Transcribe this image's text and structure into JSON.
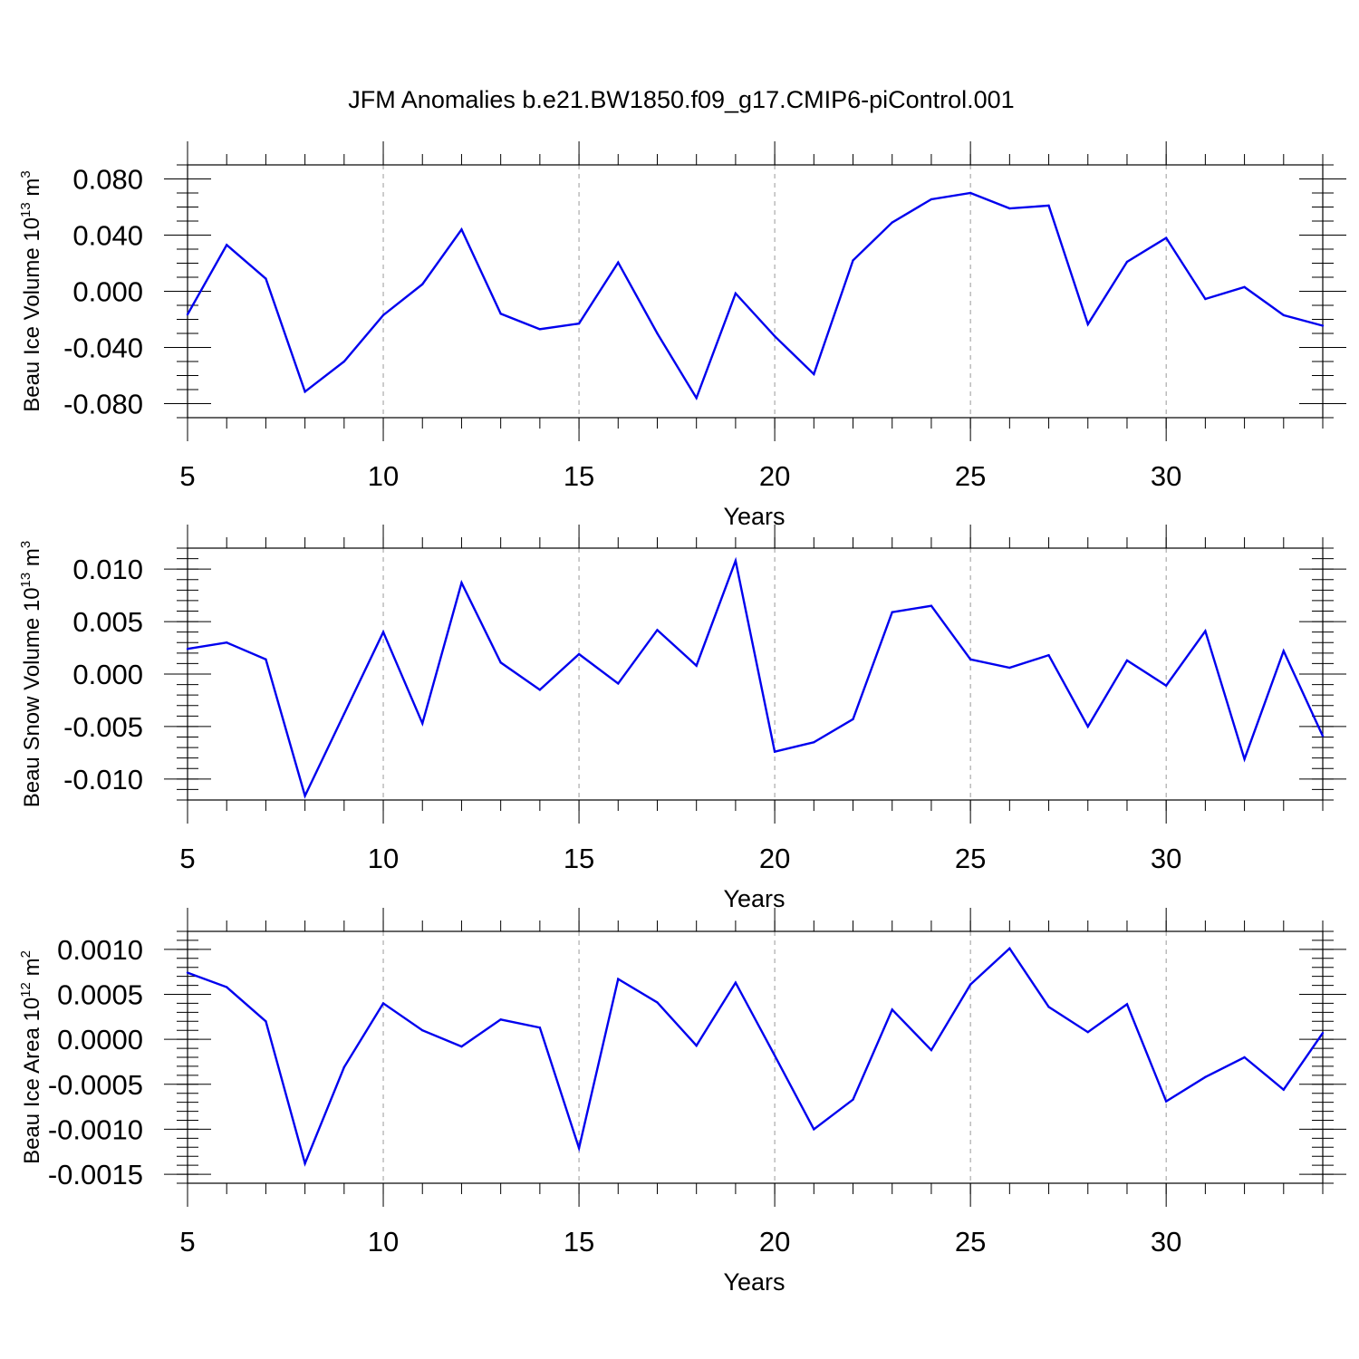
{
  "chart_title": "JFM Anomalies b.e21.BW1850.f09_g17.CMIP6-piControl.001",
  "line_color": "#0000ee",
  "chart_data": [
    {
      "type": "line",
      "ylabel": "Beau Ice Volume 10",
      "ylabel_exp": "13",
      "ylabel_unit": " m",
      "ylabel_unit_exp": "3",
      "xlabel": "Years",
      "xlim": [
        5,
        34
      ],
      "ylim": [
        -0.09,
        0.09
      ],
      "xticks": [
        5,
        10,
        15,
        20,
        25,
        30
      ],
      "xtick_labels": [
        "5",
        "10",
        "15",
        "20",
        "25",
        "30"
      ],
      "yticks": [
        0.08,
        0.04,
        0.0,
        -0.04,
        -0.08
      ],
      "ytick_labels": [
        "0.080",
        "0.040",
        "0.000",
        "-0.040",
        "-0.080"
      ],
      "yminor_step": 0.01,
      "grid": "x-dashed",
      "x": [
        5,
        6,
        7,
        8,
        9,
        10,
        11,
        12,
        13,
        14,
        15,
        16,
        17,
        18,
        19,
        20,
        21,
        22,
        23,
        24,
        25,
        26,
        27,
        28,
        29,
        30,
        31,
        32,
        33,
        34
      ],
      "y": [
        -0.0165,
        0.033,
        0.009,
        -0.0715,
        -0.05,
        -0.017,
        0.005,
        0.044,
        -0.016,
        -0.027,
        -0.023,
        0.0205,
        -0.03,
        -0.076,
        -0.0015,
        -0.032,
        -0.059,
        0.022,
        0.049,
        0.0655,
        0.07,
        0.059,
        0.061,
        -0.0235,
        0.021,
        0.038,
        -0.0055,
        0.003,
        -0.017,
        -0.0245
      ]
    },
    {
      "type": "line",
      "ylabel": "Beau Snow Volume 10",
      "ylabel_exp": "13",
      "ylabel_unit": " m",
      "ylabel_unit_exp": "3",
      "xlabel": "Years",
      "xlim": [
        5,
        34
      ],
      "ylim": [
        -0.012,
        0.012
      ],
      "xticks": [
        5,
        10,
        15,
        20,
        25,
        30
      ],
      "xtick_labels": [
        "5",
        "10",
        "15",
        "20",
        "25",
        "30"
      ],
      "yticks": [
        0.01,
        0.005,
        0.0,
        -0.005,
        -0.01
      ],
      "ytick_labels": [
        "0.010",
        "0.005",
        "0.000",
        "-0.005",
        "-0.010"
      ],
      "yminor_step": 0.001,
      "grid": "x-dashed",
      "x": [
        5,
        6,
        7,
        8,
        9,
        10,
        11,
        12,
        13,
        14,
        15,
        16,
        17,
        18,
        19,
        20,
        21,
        22,
        23,
        24,
        25,
        26,
        27,
        28,
        29,
        30,
        31,
        32,
        33,
        34
      ],
      "y": [
        0.0024,
        0.003,
        0.0014,
        -0.0116,
        -0.0038,
        0.004,
        -0.0047,
        0.0087,
        0.0011,
        -0.0015,
        0.0019,
        -0.0009,
        0.0042,
        0.0008,
        0.0108,
        -0.0074,
        -0.0065,
        -0.0043,
        0.0059,
        0.0065,
        0.0014,
        0.0006,
        0.0018,
        -0.005,
        0.0013,
        -0.0011,
        0.0041,
        -0.0081,
        0.0022,
        -0.0059
      ]
    },
    {
      "type": "line",
      "ylabel": "Beau Ice Area 10",
      "ylabel_exp": "12",
      "ylabel_unit": " m",
      "ylabel_unit_exp": "2",
      "xlabel": "Years",
      "xlim": [
        5,
        34
      ],
      "ylim": [
        -0.0016,
        0.0012
      ],
      "xticks": [
        5,
        10,
        15,
        20,
        25,
        30
      ],
      "xtick_labels": [
        "5",
        "10",
        "15",
        "20",
        "25",
        "30"
      ],
      "yticks": [
        0.001,
        0.0005,
        0.0,
        -0.0005,
        -0.001,
        -0.0015
      ],
      "ytick_labels": [
        "0.0010",
        "0.0005",
        "0.0000",
        "-0.0005",
        "-0.0010",
        "-0.0015"
      ],
      "yminor_step": 0.0001,
      "grid": "x-dashed",
      "x": [
        5,
        6,
        7,
        8,
        9,
        10,
        11,
        12,
        13,
        14,
        15,
        16,
        17,
        18,
        19,
        20,
        21,
        22,
        23,
        24,
        25,
        26,
        27,
        28,
        29,
        30,
        31,
        32,
        33,
        34
      ],
      "y": [
        0.00074,
        0.00058,
        0.0002,
        -0.00138,
        -0.00031,
        0.0004,
        0.0001,
        -8e-05,
        0.00022,
        0.00013,
        -0.00121,
        0.00067,
        0.00041,
        -7e-05,
        0.00063,
        -0.00018,
        -0.001,
        -0.00067,
        0.00033,
        -0.00012,
        0.00061,
        0.00101,
        0.00036,
        8e-05,
        0.00039,
        -0.00069,
        -0.00042,
        -0.0002,
        -0.00056,
        7e-05
      ]
    }
  ]
}
